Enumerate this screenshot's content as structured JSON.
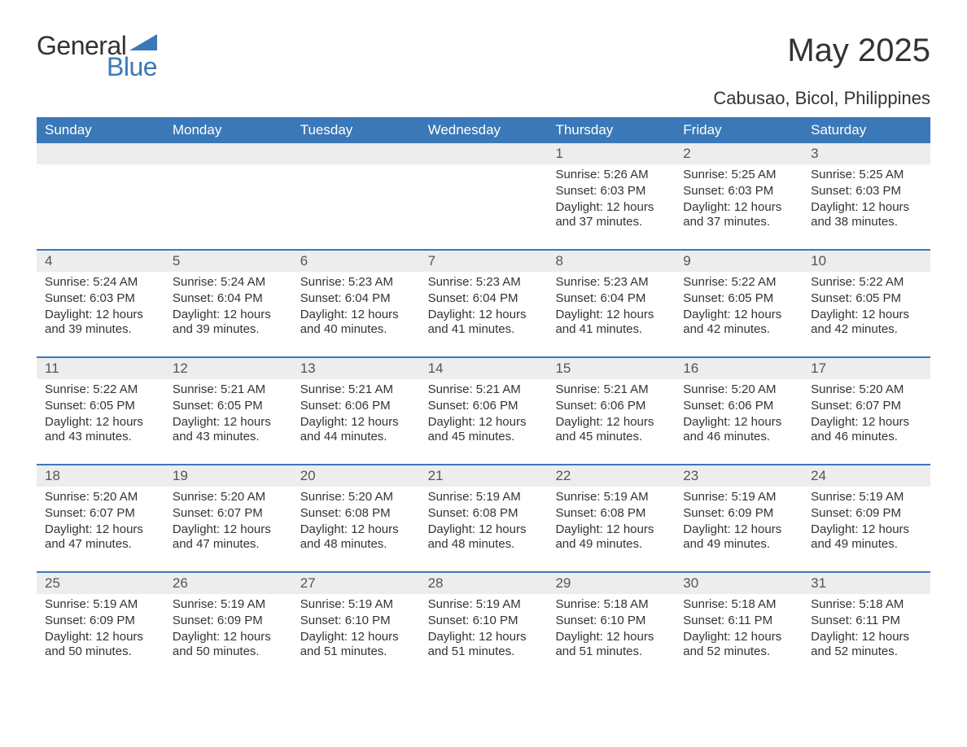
{
  "logo": {
    "text1": "General",
    "text2": "Blue",
    "accent_color": "#3b78b8"
  },
  "title": "May 2025",
  "location": "Cabusao, Bicol, Philippines",
  "colors": {
    "header_bg": "#3b78b8",
    "header_text": "#ffffff",
    "daynum_bg": "#ededed",
    "row_border": "#3b78b8",
    "body_text": "#333333"
  },
  "fonts": {
    "title_size": 40,
    "location_size": 22,
    "weekday_size": 17,
    "daynum_size": 17,
    "body_size": 15
  },
  "weekdays": [
    "Sunday",
    "Monday",
    "Tuesday",
    "Wednesday",
    "Thursday",
    "Friday",
    "Saturday"
  ],
  "weeks": [
    [
      {
        "day": "",
        "sunrise": "",
        "sunset": "",
        "daylight": ""
      },
      {
        "day": "",
        "sunrise": "",
        "sunset": "",
        "daylight": ""
      },
      {
        "day": "",
        "sunrise": "",
        "sunset": "",
        "daylight": ""
      },
      {
        "day": "",
        "sunrise": "",
        "sunset": "",
        "daylight": ""
      },
      {
        "day": "1",
        "sunrise": "Sunrise: 5:26 AM",
        "sunset": "Sunset: 6:03 PM",
        "daylight": "Daylight: 12 hours and 37 minutes."
      },
      {
        "day": "2",
        "sunrise": "Sunrise: 5:25 AM",
        "sunset": "Sunset: 6:03 PM",
        "daylight": "Daylight: 12 hours and 37 minutes."
      },
      {
        "day": "3",
        "sunrise": "Sunrise: 5:25 AM",
        "sunset": "Sunset: 6:03 PM",
        "daylight": "Daylight: 12 hours and 38 minutes."
      }
    ],
    [
      {
        "day": "4",
        "sunrise": "Sunrise: 5:24 AM",
        "sunset": "Sunset: 6:03 PM",
        "daylight": "Daylight: 12 hours and 39 minutes."
      },
      {
        "day": "5",
        "sunrise": "Sunrise: 5:24 AM",
        "sunset": "Sunset: 6:04 PM",
        "daylight": "Daylight: 12 hours and 39 minutes."
      },
      {
        "day": "6",
        "sunrise": "Sunrise: 5:23 AM",
        "sunset": "Sunset: 6:04 PM",
        "daylight": "Daylight: 12 hours and 40 minutes."
      },
      {
        "day": "7",
        "sunrise": "Sunrise: 5:23 AM",
        "sunset": "Sunset: 6:04 PM",
        "daylight": "Daylight: 12 hours and 41 minutes."
      },
      {
        "day": "8",
        "sunrise": "Sunrise: 5:23 AM",
        "sunset": "Sunset: 6:04 PM",
        "daylight": "Daylight: 12 hours and 41 minutes."
      },
      {
        "day": "9",
        "sunrise": "Sunrise: 5:22 AM",
        "sunset": "Sunset: 6:05 PM",
        "daylight": "Daylight: 12 hours and 42 minutes."
      },
      {
        "day": "10",
        "sunrise": "Sunrise: 5:22 AM",
        "sunset": "Sunset: 6:05 PM",
        "daylight": "Daylight: 12 hours and 42 minutes."
      }
    ],
    [
      {
        "day": "11",
        "sunrise": "Sunrise: 5:22 AM",
        "sunset": "Sunset: 6:05 PM",
        "daylight": "Daylight: 12 hours and 43 minutes."
      },
      {
        "day": "12",
        "sunrise": "Sunrise: 5:21 AM",
        "sunset": "Sunset: 6:05 PM",
        "daylight": "Daylight: 12 hours and 43 minutes."
      },
      {
        "day": "13",
        "sunrise": "Sunrise: 5:21 AM",
        "sunset": "Sunset: 6:06 PM",
        "daylight": "Daylight: 12 hours and 44 minutes."
      },
      {
        "day": "14",
        "sunrise": "Sunrise: 5:21 AM",
        "sunset": "Sunset: 6:06 PM",
        "daylight": "Daylight: 12 hours and 45 minutes."
      },
      {
        "day": "15",
        "sunrise": "Sunrise: 5:21 AM",
        "sunset": "Sunset: 6:06 PM",
        "daylight": "Daylight: 12 hours and 45 minutes."
      },
      {
        "day": "16",
        "sunrise": "Sunrise: 5:20 AM",
        "sunset": "Sunset: 6:06 PM",
        "daylight": "Daylight: 12 hours and 46 minutes."
      },
      {
        "day": "17",
        "sunrise": "Sunrise: 5:20 AM",
        "sunset": "Sunset: 6:07 PM",
        "daylight": "Daylight: 12 hours and 46 minutes."
      }
    ],
    [
      {
        "day": "18",
        "sunrise": "Sunrise: 5:20 AM",
        "sunset": "Sunset: 6:07 PM",
        "daylight": "Daylight: 12 hours and 47 minutes."
      },
      {
        "day": "19",
        "sunrise": "Sunrise: 5:20 AM",
        "sunset": "Sunset: 6:07 PM",
        "daylight": "Daylight: 12 hours and 47 minutes."
      },
      {
        "day": "20",
        "sunrise": "Sunrise: 5:20 AM",
        "sunset": "Sunset: 6:08 PM",
        "daylight": "Daylight: 12 hours and 48 minutes."
      },
      {
        "day": "21",
        "sunrise": "Sunrise: 5:19 AM",
        "sunset": "Sunset: 6:08 PM",
        "daylight": "Daylight: 12 hours and 48 minutes."
      },
      {
        "day": "22",
        "sunrise": "Sunrise: 5:19 AM",
        "sunset": "Sunset: 6:08 PM",
        "daylight": "Daylight: 12 hours and 49 minutes."
      },
      {
        "day": "23",
        "sunrise": "Sunrise: 5:19 AM",
        "sunset": "Sunset: 6:09 PM",
        "daylight": "Daylight: 12 hours and 49 minutes."
      },
      {
        "day": "24",
        "sunrise": "Sunrise: 5:19 AM",
        "sunset": "Sunset: 6:09 PM",
        "daylight": "Daylight: 12 hours and 49 minutes."
      }
    ],
    [
      {
        "day": "25",
        "sunrise": "Sunrise: 5:19 AM",
        "sunset": "Sunset: 6:09 PM",
        "daylight": "Daylight: 12 hours and 50 minutes."
      },
      {
        "day": "26",
        "sunrise": "Sunrise: 5:19 AM",
        "sunset": "Sunset: 6:09 PM",
        "daylight": "Daylight: 12 hours and 50 minutes."
      },
      {
        "day": "27",
        "sunrise": "Sunrise: 5:19 AM",
        "sunset": "Sunset: 6:10 PM",
        "daylight": "Daylight: 12 hours and 51 minutes."
      },
      {
        "day": "28",
        "sunrise": "Sunrise: 5:19 AM",
        "sunset": "Sunset: 6:10 PM",
        "daylight": "Daylight: 12 hours and 51 minutes."
      },
      {
        "day": "29",
        "sunrise": "Sunrise: 5:18 AM",
        "sunset": "Sunset: 6:10 PM",
        "daylight": "Daylight: 12 hours and 51 minutes."
      },
      {
        "day": "30",
        "sunrise": "Sunrise: 5:18 AM",
        "sunset": "Sunset: 6:11 PM",
        "daylight": "Daylight: 12 hours and 52 minutes."
      },
      {
        "day": "31",
        "sunrise": "Sunrise: 5:18 AM",
        "sunset": "Sunset: 6:11 PM",
        "daylight": "Daylight: 12 hours and 52 minutes."
      }
    ]
  ]
}
